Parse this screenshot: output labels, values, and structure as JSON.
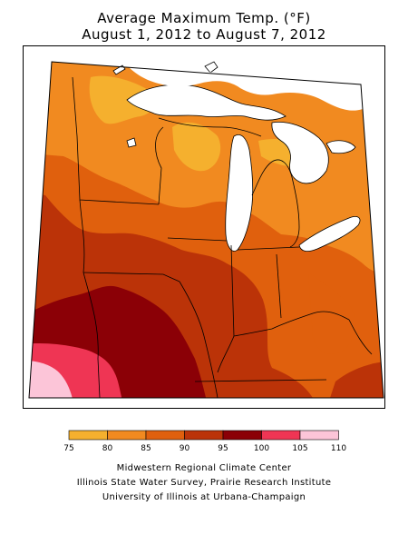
{
  "title": {
    "line1": "Average Maximum Temp. (°F)",
    "line2": "August 1, 2012 to August 7, 2012"
  },
  "legend": {
    "bins": [
      {
        "from": 75,
        "to": 80,
        "color": "#f5b02e"
      },
      {
        "from": 80,
        "to": 85,
        "color": "#f18a20"
      },
      {
        "from": 85,
        "to": 90,
        "color": "#e0600d"
      },
      {
        "from": 90,
        "to": 95,
        "color": "#bb3308"
      },
      {
        "from": 95,
        "to": 100,
        "color": "#8b0006"
      },
      {
        "from": 100,
        "to": 105,
        "color": "#ef3554"
      },
      {
        "from": 105,
        "to": 110,
        "color": "#fcc5d8"
      }
    ],
    "tick_labels": [
      "75",
      "80",
      "85",
      "90",
      "95",
      "100",
      "105",
      "110"
    ]
  },
  "credits": [
    "Midwestern Regional Climate Center",
    "Illinois State Water Survey, Prairie Research Institute",
    "University of Illinois at Urbana-Champaign"
  ]
}
